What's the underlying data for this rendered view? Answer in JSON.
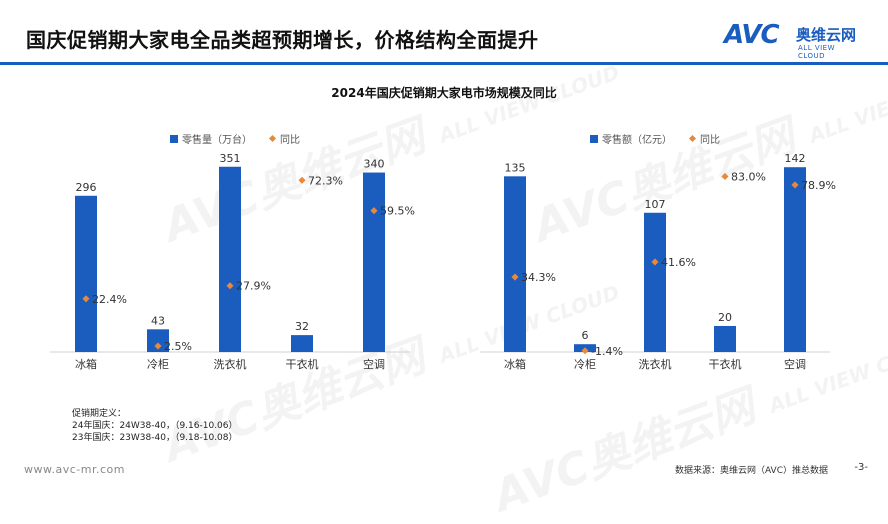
{
  "header": {
    "title": "国庆促销期大家电全品类超预期增长，价格结构全面提升",
    "logo_main": "AVC",
    "logo_cn": "奥维云网",
    "logo_sub": "ALL VIEW CLOUD"
  },
  "watermark": {
    "main": "AVC奥维云网",
    "sub": "ALL VIEW CLOUD"
  },
  "colors": {
    "bar": "#1a5dbf",
    "marker": "#e8893a",
    "accent": "#1a5dbf"
  },
  "chart_data": [
    {
      "type": "bar",
      "title": "2024年国庆促销期大家电市场规模及同比",
      "legend": [
        "零售量（万台）",
        "同比"
      ],
      "categories": [
        "冰箱",
        "冷柜",
        "洗衣机",
        "干衣机",
        "空调"
      ],
      "series": [
        {
          "name": "零售量（万台）",
          "values": [
            296,
            43,
            351,
            32,
            340
          ],
          "labels": [
            "296",
            "43",
            "351",
            "32",
            "340"
          ]
        },
        {
          "name": "同比",
          "values": [
            22.4,
            2.5,
            27.9,
            72.3,
            59.5
          ],
          "labels": [
            "22.4%",
            "2.5%",
            "27.9%",
            "72.3%",
            "59.5%"
          ]
        }
      ],
      "ylim": [
        0,
        360
      ],
      "y2lim": [
        0,
        80
      ]
    },
    {
      "type": "bar",
      "title": "2024年国庆促销期大家电市场规模及同比",
      "legend": [
        "零售额（亿元）",
        "同比"
      ],
      "categories": [
        "冰箱",
        "冷柜",
        "洗衣机",
        "干衣机",
        "空调"
      ],
      "series": [
        {
          "name": "零售额（亿元）",
          "values": [
            135,
            6,
            107,
            20,
            142
          ],
          "labels": [
            "135",
            "6",
            "107",
            "20",
            "142"
          ]
        },
        {
          "name": "同比",
          "values": [
            34.3,
            -1.4,
            41.6,
            83.0,
            78.9
          ],
          "labels": [
            "34.3%",
            "-1.4%",
            "41.6%",
            "83.0%",
            "78.9%"
          ]
        }
      ],
      "ylim": [
        0,
        146
      ],
      "y2lim": [
        -2,
        90
      ]
    }
  ],
  "definition": {
    "heading": "促销期定义：",
    "line1": "24年国庆：24W38-40，（9.16-10.06）",
    "line2": "23年国庆：23W38-40，（9.18-10.08）"
  },
  "footer": {
    "url": "www.avc-mr.com",
    "source": "数据来源：奥维云网（AVC）推总数据",
    "page": "-3-"
  }
}
